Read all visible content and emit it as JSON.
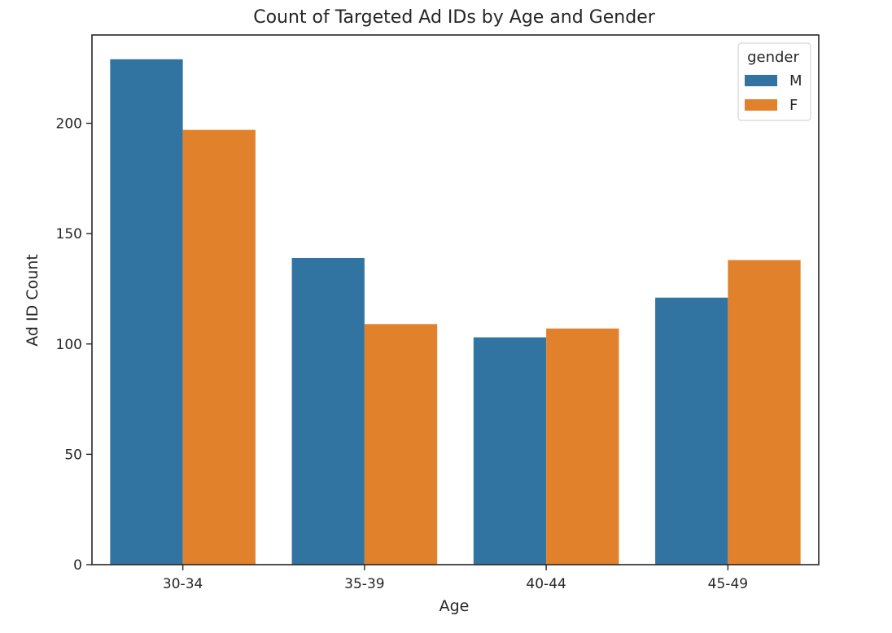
{
  "chart_data": {
    "type": "bar",
    "title": "Count of Targeted Ad IDs by Age and Gender",
    "xlabel": "Age",
    "ylabel": "Ad ID Count",
    "categories": [
      "30-34",
      "35-39",
      "40-44",
      "45-49"
    ],
    "series": [
      {
        "name": "M",
        "color": "#3274a1",
        "values": [
          229,
          139,
          103,
          121
        ]
      },
      {
        "name": "F",
        "color": "#e1812c",
        "values": [
          197,
          109,
          107,
          138
        ]
      }
    ],
    "ylim": [
      0,
      240
    ],
    "yticks": [
      0,
      50,
      100,
      150,
      200
    ],
    "grid": false,
    "legend": {
      "title": "gender",
      "placement": "top-right"
    }
  }
}
